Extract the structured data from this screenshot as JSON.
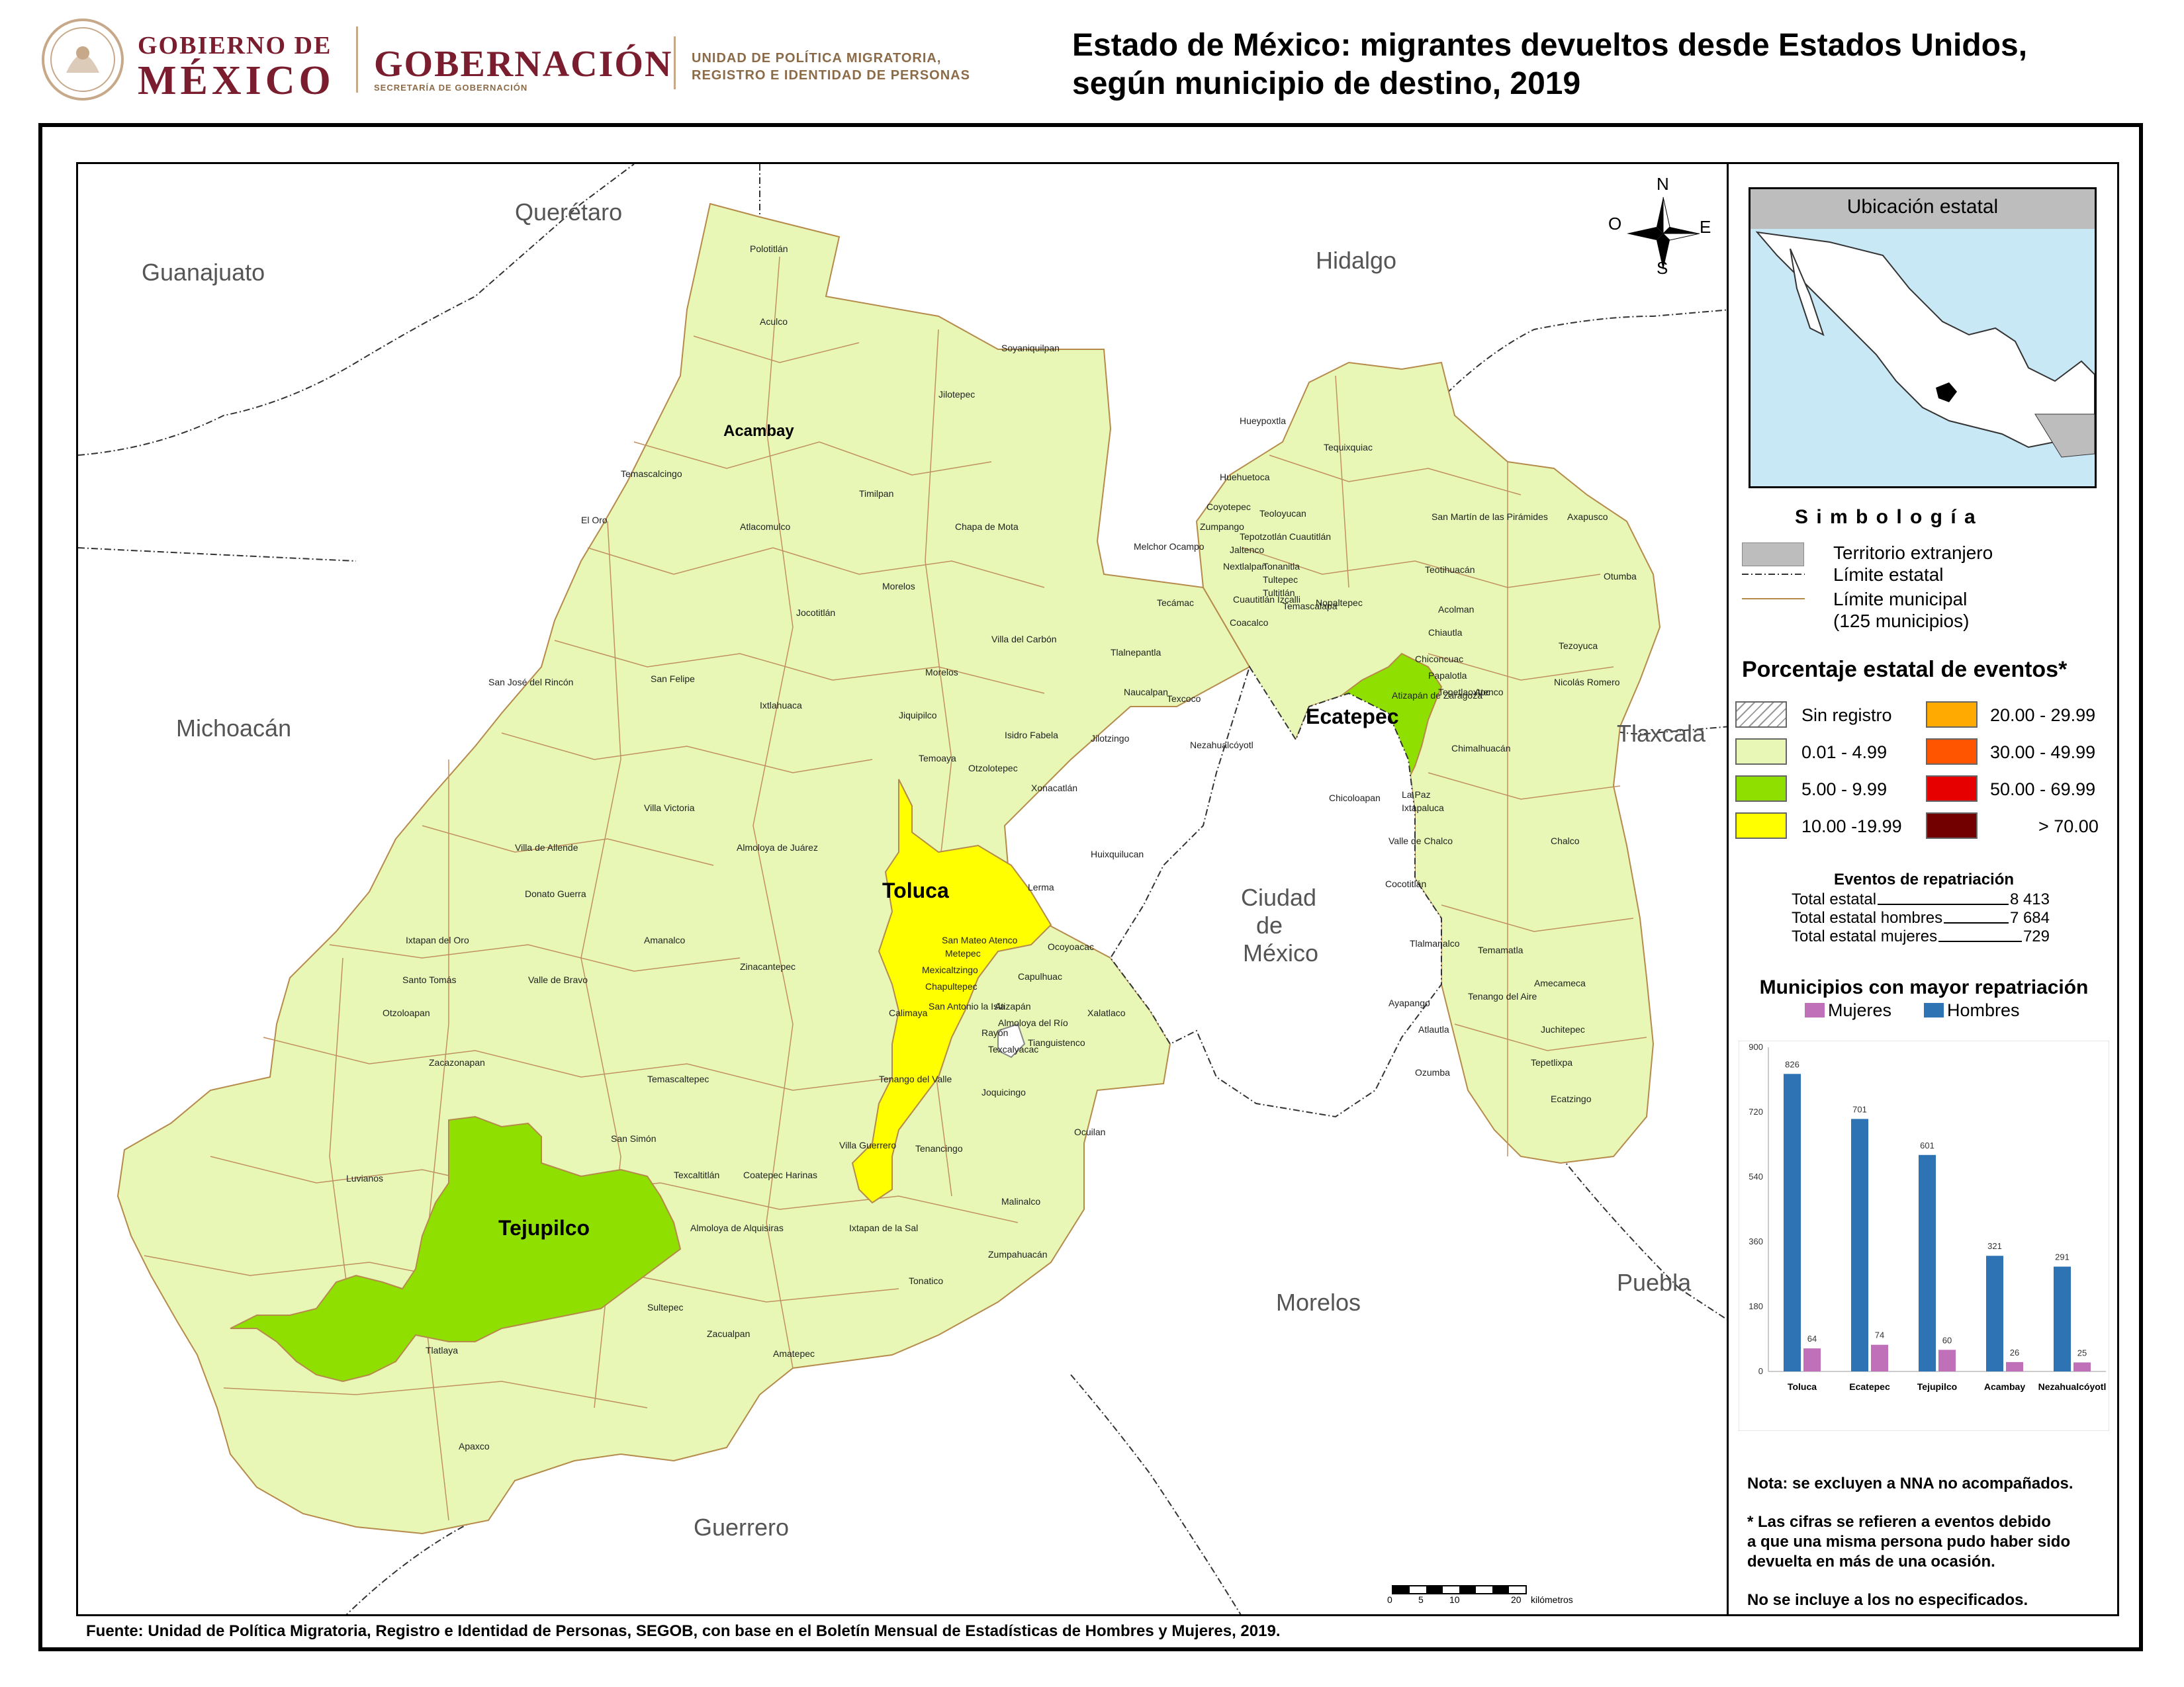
{
  "header": {
    "gov_line1": "GOBIERNO DE",
    "gov_line2": "MÉXICO",
    "ministry": "GOBERNACIÓN",
    "ministry_sub": "SECRETARÍA DE GOBERNACIÓN",
    "unit_line1": "UNIDAD DE POLÍTICA MIGRATORIA,",
    "unit_line2": "REGISTRO E IDENTIDAD DE PERSONAS"
  },
  "title": {
    "line1": "Estado de México: migrantes devueltos desde Estados Unidos,",
    "line2": "según municipio de destino, 2019"
  },
  "neighbors": [
    "Querétaro",
    "Guanajuato",
    "Hidalgo",
    "Michoacán",
    "Tlaxcala",
    "Ciudad",
    "de",
    "México",
    "Morelos",
    "Puebla",
    "Guerrero"
  ],
  "compass": {
    "n": "N",
    "s": "S",
    "e": "E",
    "o": "O"
  },
  "highlight_municipalities": [
    "Toluca",
    "Ecatepec",
    "Tejupilco",
    "Acambay"
  ],
  "municipalities": [
    "Polotitlán",
    "Aculco",
    "Soyaniquilpan",
    "Jilotepec",
    "Temascalcingo",
    "Timilpan",
    "El Oro",
    "Atlacomulco",
    "Chapa de Mota",
    "Morelos",
    "Jocotitlán",
    "Villa del Carbón",
    "San José del Rincón",
    "San Felipe",
    "Morelos",
    "Ixtlahuaca",
    "Jiquipilco",
    "Isidro Fabela",
    "Temoaya",
    "Jilotzingo",
    "Villa Victoria",
    "Otzolotepec",
    "Xonacatlán",
    "Villa de Allende",
    "Almoloya de Juárez",
    "Huixquilucan",
    "Donato Guerra",
    "Lerma",
    "Ixtapan del Oro",
    "Amanalco",
    "San Mateo Atenco",
    "Ocoyoacac",
    "Santo Tomás",
    "Metepec",
    "Valle de Bravo",
    "Zinacantepec",
    "Mexicaltzingo",
    "Capulhuac",
    "Chapultepec",
    "Otzoloapan",
    "San Antonio la Isla",
    "Xalatlaco",
    "Calimaya",
    "Atizapán",
    "Almoloya del Río",
    "Rayón",
    "Texcalyacac",
    "Tianguistenco",
    "Zacazonapan",
    "Temascaltepec",
    "Tenango del Valle",
    "Joquicingo",
    "San Simón",
    "Ocuilan",
    "Luvianos",
    "Texcaltitlán",
    "Villa Guerrero",
    "Coatepec Harinas",
    "Tenancingo",
    "Malinalco",
    "Almoloya de Alquisiras",
    "Ixtapan de la Sal",
    "Zumpahuacán",
    "Tonatico",
    "Sultepec",
    "Zacualpan",
    "Amatepec",
    "Tlatlaya",
    "Apaxco",
    "Hueypoxtla",
    "Tequixquiac",
    "Huehuetoca",
    "Coyotepec",
    "Zumpango",
    "Teoloyucan",
    "Jaltenco",
    "Tepotzotlán",
    "Cuautitlán",
    "Melchor Ocampo",
    "Nextlalpan",
    "Tonanitla",
    "Tultepec",
    "Tultitlán",
    "Cuautitlán Izcalli",
    "Coacalco",
    "Tecámac",
    "Temascalapa",
    "Nopaltepec",
    "San Martín de las Pirámides",
    "Axapusco",
    "Teotihuacán",
    "Otumba",
    "Acolman",
    "Tezoyuca",
    "Chiautla",
    "Chiconcuac",
    "Papalotla",
    "Tepetlaoxtoc",
    "Atenco",
    "Nicolás Romero",
    "Atizapán de Zaragoza",
    "Tlalnepantla",
    "Naucalpan",
    "Texcoco",
    "Nezahualcóyotl",
    "Chimalhuacán",
    "Chicoloapan",
    "La Paz",
    "Ixtapaluca",
    "Valle de Chalco",
    "Chalco",
    "Cocotitlán",
    "Temamatla",
    "Tlalmanalco",
    "Tenango del Aire",
    "Amecameca",
    "Ayapango",
    "Juchitepec",
    "Atlautla",
    "Tepetlixpa",
    "Ozumba",
    "Ecatzingo"
  ],
  "scale": {
    "ticks": [
      "0",
      "5",
      "10",
      "20"
    ],
    "unit": "kilómetros"
  },
  "inset": {
    "title": "Ubicación estatal"
  },
  "legend": {
    "symbology_title": "S i m b o l o g í a",
    "foreign": "Territorio extranjero",
    "state_limit": "Límite estatal",
    "muni_limit_1": "Límite municipal",
    "muni_limit_2": "(125 municipios)",
    "pct_title": "Porcentaje estatal de eventos*",
    "classes": [
      {
        "label": "Sin registro",
        "color": "#ffffff"
      },
      {
        "label": "0.01  - 4.99",
        "color": "#e8f7b5"
      },
      {
        "label": "5.00  - 9.99",
        "color": "#8fe000"
      },
      {
        "label": "10.00 -19.99",
        "color": "#ffff00"
      },
      {
        "label": "20.00 - 29.99",
        "color": "#ffaa00"
      },
      {
        "label": "30.00 - 49.99",
        "color": "#ff5500"
      },
      {
        "label": "50.00 - 69.99",
        "color": "#e60000"
      },
      {
        "label": "> 70.00",
        "color": "#730000"
      }
    ],
    "events_title": "Eventos de repatriación",
    "events": [
      {
        "label": "Total estatal",
        "value": "8 413"
      },
      {
        "label": "Total estatal hombres",
        "value": "7 684"
      },
      {
        "label": "Total estatal mujeres",
        "value": "729"
      }
    ]
  },
  "chart_data": {
    "type": "bar",
    "title": "Municipios con mayor repatriación",
    "categories": [
      "Toluca",
      "Ecatepec",
      "Tejupilco",
      "Acambay",
      "Nezahualcóyotl"
    ],
    "series": [
      {
        "name": "Mujeres",
        "values": [
          64,
          74,
          60,
          26,
          25
        ],
        "color": "#c070b8"
      },
      {
        "name": "Hombres",
        "values": [
          826,
          701,
          601,
          321,
          291
        ],
        "color": "#2e74b5"
      }
    ],
    "yticks": [
      "0",
      "180",
      "360",
      "540",
      "720",
      "900"
    ],
    "ylim": [
      0,
      900
    ],
    "legend": "top"
  },
  "notes": [
    "Nota: se excluyen a NNA no acompañados.",
    "* Las cifras se refieren a eventos debido",
    "a que una misma persona pudo haber sido",
    "devuelta en más de una ocasión.",
    "No se incluye a los no especificados."
  ],
  "source": "Fuente: Unidad de Política Migratoria, Registro e Identidad de Personas, SEGOB, con base en el Boletín Mensual de Estadísticas de Hombres y Mujeres, 2019."
}
